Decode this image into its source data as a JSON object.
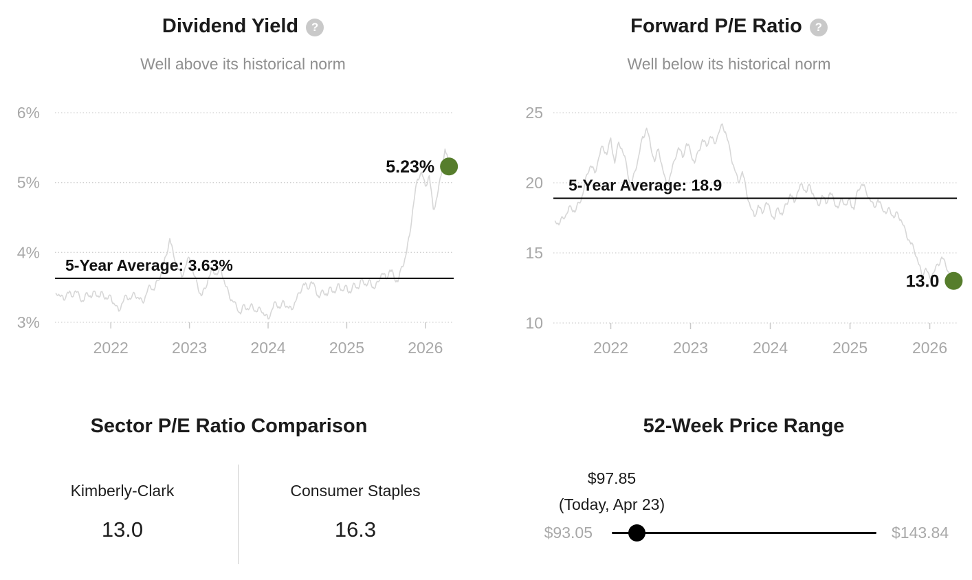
{
  "chart_data": [
    {
      "type": "line",
      "title": "Dividend Yield",
      "help_glyph": "?",
      "subtitle": "Well above its historical norm",
      "xlabel": "",
      "ylabel": "",
      "grid": "dotted-horizontal",
      "x_domain": [
        2021.29,
        2026.36
      ],
      "y_domain": [
        6,
        3
      ],
      "y_ticks": [
        {
          "value": 6,
          "label": "6%"
        },
        {
          "value": 5,
          "label": "5%"
        },
        {
          "value": 4,
          "label": "4%"
        },
        {
          "value": 3,
          "label": "3%"
        }
      ],
      "x_ticks": [
        {
          "value": 2022,
          "label": "2022"
        },
        {
          "value": 2023,
          "label": "2023"
        },
        {
          "value": 2024,
          "label": "2024"
        },
        {
          "value": 2025,
          "label": "2025"
        },
        {
          "value": 2026,
          "label": "2026"
        }
      ],
      "average": {
        "value": 3.63,
        "label": "5-Year Average: 3.63%"
      },
      "current": {
        "value": 5.23,
        "t": 2026.3,
        "label": "5.23%"
      },
      "series": [
        [
          2021.3,
          3.42
        ],
        [
          2021.35,
          3.38
        ],
        [
          2021.4,
          3.32
        ],
        [
          2021.45,
          3.43
        ],
        [
          2021.5,
          3.37
        ],
        [
          2021.55,
          3.45
        ],
        [
          2021.6,
          3.38
        ],
        [
          2021.65,
          3.3
        ],
        [
          2021.7,
          3.42
        ],
        [
          2021.75,
          3.35
        ],
        [
          2021.8,
          3.44
        ],
        [
          2021.85,
          3.36
        ],
        [
          2021.9,
          3.41
        ],
        [
          2021.95,
          3.33
        ],
        [
          2022.0,
          3.38
        ],
        [
          2022.05,
          3.25
        ],
        [
          2022.1,
          3.16
        ],
        [
          2022.15,
          3.28
        ],
        [
          2022.2,
          3.38
        ],
        [
          2022.25,
          3.33
        ],
        [
          2022.3,
          3.42
        ],
        [
          2022.35,
          3.35
        ],
        [
          2022.4,
          3.3
        ],
        [
          2022.45,
          3.4
        ],
        [
          2022.5,
          3.52
        ],
        [
          2022.55,
          3.46
        ],
        [
          2022.6,
          3.6
        ],
        [
          2022.65,
          3.72
        ],
        [
          2022.7,
          3.95
        ],
        [
          2022.75,
          4.2
        ],
        [
          2022.8,
          3.95
        ],
        [
          2022.85,
          3.78
        ],
        [
          2022.9,
          3.65
        ],
        [
          2022.95,
          3.8
        ],
        [
          2023.0,
          3.92
        ],
        [
          2023.05,
          3.7
        ],
        [
          2023.1,
          3.55
        ],
        [
          2023.15,
          3.38
        ],
        [
          2023.2,
          3.48
        ],
        [
          2023.25,
          3.65
        ],
        [
          2023.3,
          3.75
        ],
        [
          2023.35,
          3.68
        ],
        [
          2023.4,
          3.78
        ],
        [
          2023.45,
          3.55
        ],
        [
          2023.5,
          3.42
        ],
        [
          2023.55,
          3.3
        ],
        [
          2023.6,
          3.22
        ],
        [
          2023.65,
          3.12
        ],
        [
          2023.7,
          3.25
        ],
        [
          2023.75,
          3.18
        ],
        [
          2023.8,
          3.25
        ],
        [
          2023.85,
          3.15
        ],
        [
          2023.9,
          3.2
        ],
        [
          2023.95,
          3.1
        ],
        [
          2024.0,
          3.05
        ],
        [
          2024.05,
          3.18
        ],
        [
          2024.1,
          3.28
        ],
        [
          2024.15,
          3.2
        ],
        [
          2024.2,
          3.3
        ],
        [
          2024.25,
          3.22
        ],
        [
          2024.3,
          3.18
        ],
        [
          2024.35,
          3.3
        ],
        [
          2024.4,
          3.42
        ],
        [
          2024.45,
          3.55
        ],
        [
          2024.5,
          3.48
        ],
        [
          2024.55,
          3.58
        ],
        [
          2024.6,
          3.5
        ],
        [
          2024.65,
          3.35
        ],
        [
          2024.7,
          3.45
        ],
        [
          2024.75,
          3.38
        ],
        [
          2024.8,
          3.5
        ],
        [
          2024.85,
          3.42
        ],
        [
          2024.9,
          3.55
        ],
        [
          2024.95,
          3.45
        ],
        [
          2025.0,
          3.52
        ],
        [
          2025.05,
          3.42
        ],
        [
          2025.1,
          3.55
        ],
        [
          2025.15,
          3.48
        ],
        [
          2025.2,
          3.62
        ],
        [
          2025.25,
          3.52
        ],
        [
          2025.3,
          3.6
        ],
        [
          2025.35,
          3.48
        ],
        [
          2025.4,
          3.58
        ],
        [
          2025.45,
          3.7
        ],
        [
          2025.5,
          3.62
        ],
        [
          2025.55,
          3.75
        ],
        [
          2025.6,
          3.65
        ],
        [
          2025.65,
          3.58
        ],
        [
          2025.7,
          3.8
        ],
        [
          2025.75,
          3.95
        ],
        [
          2025.8,
          4.25
        ],
        [
          2025.85,
          4.7
        ],
        [
          2025.9,
          5.05
        ],
        [
          2025.95,
          5.15
        ],
        [
          2026.0,
          4.95
        ],
        [
          2026.05,
          5.1
        ],
        [
          2026.1,
          4.62
        ],
        [
          2026.15,
          4.8
        ],
        [
          2026.2,
          5.1
        ],
        [
          2026.25,
          5.48
        ],
        [
          2026.3,
          5.23
        ]
      ]
    },
    {
      "type": "line",
      "title": "Forward P/E Ratio",
      "help_glyph": "?",
      "subtitle": "Well below its historical norm",
      "xlabel": "",
      "ylabel": "",
      "grid": "dotted-horizontal",
      "x_domain": [
        2021.28,
        2026.34
      ],
      "y_domain": [
        25,
        10
      ],
      "y_ticks": [
        {
          "value": 25,
          "label": "25"
        },
        {
          "value": 20,
          "label": "20"
        },
        {
          "value": 15,
          "label": "15"
        },
        {
          "value": 10,
          "label": "10"
        }
      ],
      "x_ticks": [
        {
          "value": 2022,
          "label": "2022"
        },
        {
          "value": 2023,
          "label": "2023"
        },
        {
          "value": 2024,
          "label": "2024"
        },
        {
          "value": 2025,
          "label": "2025"
        },
        {
          "value": 2026,
          "label": "2026"
        }
      ],
      "average": {
        "value": 18.9,
        "label": "5-Year Average: 18.9"
      },
      "current": {
        "value": 13.0,
        "t": 2026.3,
        "label": "13.0"
      },
      "series": [
        [
          2021.3,
          17.3
        ],
        [
          2021.35,
          17.0
        ],
        [
          2021.4,
          17.5
        ],
        [
          2021.45,
          17.8
        ],
        [
          2021.5,
          18.3
        ],
        [
          2021.55,
          17.9
        ],
        [
          2021.6,
          18.6
        ],
        [
          2021.65,
          19.2
        ],
        [
          2021.7,
          20.6
        ],
        [
          2021.75,
          21.2
        ],
        [
          2021.8,
          20.7
        ],
        [
          2021.85,
          21.8
        ],
        [
          2021.9,
          22.6
        ],
        [
          2021.95,
          22.0
        ],
        [
          2022.0,
          23.2
        ],
        [
          2022.05,
          21.4
        ],
        [
          2022.1,
          22.9
        ],
        [
          2022.15,
          22.2
        ],
        [
          2022.2,
          21.2
        ],
        [
          2022.25,
          19.6
        ],
        [
          2022.3,
          20.8
        ],
        [
          2022.35,
          21.9
        ],
        [
          2022.4,
          23.3
        ],
        [
          2022.45,
          23.9
        ],
        [
          2022.5,
          22.6
        ],
        [
          2022.55,
          21.5
        ],
        [
          2022.6,
          22.4
        ],
        [
          2022.65,
          21.0
        ],
        [
          2022.7,
          19.8
        ],
        [
          2022.75,
          20.6
        ],
        [
          2022.8,
          21.6
        ],
        [
          2022.85,
          22.5
        ],
        [
          2022.9,
          21.8
        ],
        [
          2022.95,
          22.8
        ],
        [
          2023.0,
          22.2
        ],
        [
          2023.05,
          21.4
        ],
        [
          2023.1,
          22.3
        ],
        [
          2023.15,
          23.1
        ],
        [
          2023.2,
          22.6
        ],
        [
          2023.25,
          23.3
        ],
        [
          2023.3,
          22.8
        ],
        [
          2023.35,
          23.5
        ],
        [
          2023.4,
          24.2
        ],
        [
          2023.45,
          23.4
        ],
        [
          2023.5,
          22.2
        ],
        [
          2023.55,
          21.0
        ],
        [
          2023.6,
          20.0
        ],
        [
          2023.65,
          20.8
        ],
        [
          2023.7,
          19.4
        ],
        [
          2023.75,
          18.3
        ],
        [
          2023.8,
          17.6
        ],
        [
          2023.85,
          18.4
        ],
        [
          2023.9,
          17.8
        ],
        [
          2023.95,
          18.6
        ],
        [
          2024.0,
          18.0
        ],
        [
          2024.05,
          17.4
        ],
        [
          2024.1,
          18.2
        ],
        [
          2024.15,
          17.7
        ],
        [
          2024.2,
          18.5
        ],
        [
          2024.25,
          19.2
        ],
        [
          2024.3,
          18.6
        ],
        [
          2024.35,
          19.4
        ],
        [
          2024.4,
          19.9
        ],
        [
          2024.45,
          19.3
        ],
        [
          2024.5,
          19.8
        ],
        [
          2024.55,
          19.0
        ],
        [
          2024.6,
          18.4
        ],
        [
          2024.65,
          19.1
        ],
        [
          2024.7,
          18.5
        ],
        [
          2024.75,
          19.3
        ],
        [
          2024.8,
          18.7
        ],
        [
          2024.85,
          18.2
        ],
        [
          2024.9,
          18.9
        ],
        [
          2024.95,
          18.4
        ],
        [
          2025.0,
          18.8
        ],
        [
          2025.05,
          18.1
        ],
        [
          2025.1,
          19.5
        ],
        [
          2025.15,
          19.9
        ],
        [
          2025.2,
          19.4
        ],
        [
          2025.25,
          18.8
        ],
        [
          2025.3,
          18.3
        ],
        [
          2025.35,
          18.8
        ],
        [
          2025.4,
          18.2
        ],
        [
          2025.45,
          17.8
        ],
        [
          2025.5,
          18.1
        ],
        [
          2025.55,
          17.5
        ],
        [
          2025.6,
          17.8
        ],
        [
          2025.65,
          17.2
        ],
        [
          2025.7,
          16.5
        ],
        [
          2025.75,
          15.8
        ],
        [
          2025.8,
          15.3
        ],
        [
          2025.85,
          14.4
        ],
        [
          2025.9,
          13.4
        ],
        [
          2025.95,
          13.9
        ],
        [
          2026.0,
          13.2
        ],
        [
          2026.05,
          13.6
        ],
        [
          2026.1,
          14.2
        ],
        [
          2026.15,
          14.7
        ],
        [
          2026.2,
          14.1
        ],
        [
          2026.25,
          13.5
        ],
        [
          2026.3,
          13.0
        ]
      ]
    }
  ],
  "sector_comparison": {
    "title": "Sector P/E Ratio Comparison",
    "columns": [
      {
        "name": "Kimberly-Clark",
        "value": "13.0"
      },
      {
        "name": "Consumer Staples",
        "value": "16.3"
      }
    ]
  },
  "price_range": {
    "title": "52-Week Price Range",
    "current_label": "$97.85",
    "current_note": "(Today, Apr 23)",
    "low_label": "$93.05",
    "high_label": "$143.84",
    "low": 93.05,
    "high": 143.84,
    "current": 97.85
  },
  "colors": {
    "accent_green": "#567d2c",
    "series_line": "#d7d7d7",
    "grid": "#cfcfcf",
    "tick": "#c9c9c9",
    "axis_text": "#a8a8a8",
    "muted_text": "#8f8f8f",
    "text": "#111111"
  }
}
